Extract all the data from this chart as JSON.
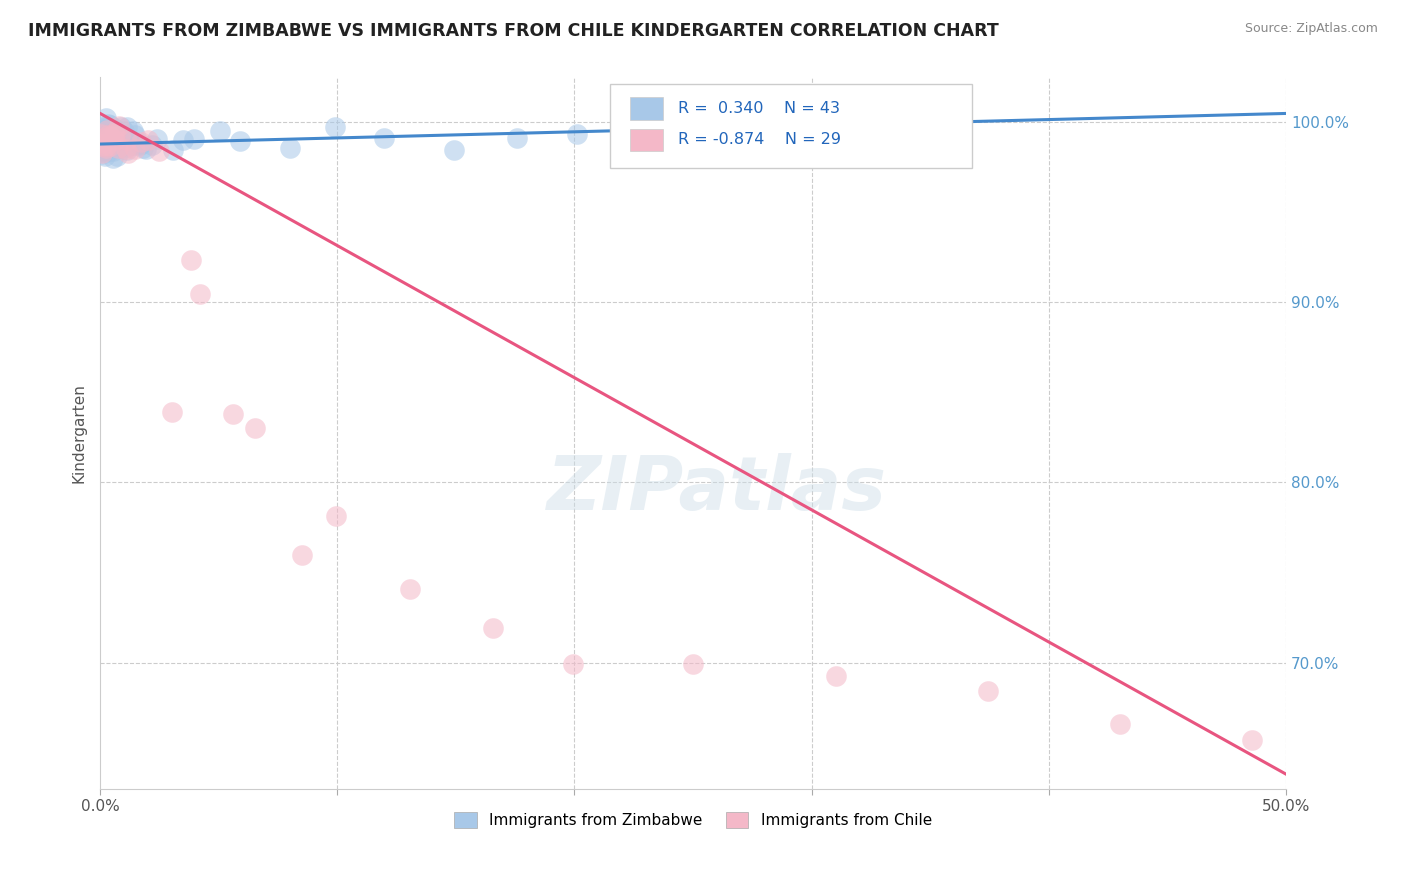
{
  "title": "IMMIGRANTS FROM ZIMBABWE VS IMMIGRANTS FROM CHILE KINDERGARTEN CORRELATION CHART",
  "source": "Source: ZipAtlas.com",
  "ylabel": "Kindergarten",
  "xlim": [
    0.0,
    0.5
  ],
  "ylim": [
    0.63,
    1.025
  ],
  "xticks": [
    0.0,
    0.1,
    0.2,
    0.3,
    0.4,
    0.5
  ],
  "xticklabels": [
    "0.0%",
    "",
    "",
    "",
    "",
    "50.0%"
  ],
  "yticks_right": [
    0.7,
    0.8,
    0.9,
    1.0
  ],
  "yticklabels_right": [
    "70.0%",
    "80.0%",
    "90.0%",
    "100.0%"
  ],
  "grid_yticks": [
    0.7,
    0.8,
    0.9,
    1.0
  ],
  "zimbabwe_color": "#a8c8e8",
  "chile_color": "#f4b8c8",
  "zimbabwe_line_color": "#4488cc",
  "chile_line_color": "#e85580",
  "R_zimbabwe": 0.34,
  "N_zimbabwe": 43,
  "R_chile": -0.874,
  "N_chile": 29,
  "legend_label_zimbabwe": "Immigrants from Zimbabwe",
  "legend_label_chile": "Immigrants from Chile",
  "watermark": "ZIPatlas",
  "background_color": "#ffffff",
  "title_color": "#222222",
  "title_fontsize": 12.5,
  "source_fontsize": 9,
  "zimbabwe_line_x": [
    0.0,
    0.5
  ],
  "zimbabwe_line_y": [
    0.988,
    1.005
  ],
  "chile_line_x": [
    0.0,
    0.5
  ],
  "chile_line_y": [
    1.005,
    0.638
  ],
  "zim_cluster_x": [
    0.001,
    0.002,
    0.002,
    0.003,
    0.003,
    0.004,
    0.004,
    0.005,
    0.005,
    0.006,
    0.006,
    0.007,
    0.007,
    0.008,
    0.008,
    0.009,
    0.01,
    0.01,
    0.011,
    0.012,
    0.013,
    0.014,
    0.015,
    0.016,
    0.018,
    0.02,
    0.022,
    0.025,
    0.03,
    0.035,
    0.04,
    0.05,
    0.06,
    0.08,
    0.1,
    0.12,
    0.15,
    0.175,
    0.2,
    0.23,
    0.27,
    0.31,
    0.35
  ],
  "zim_cluster_y": [
    0.99,
    0.995,
    0.985,
    0.992,
    0.998,
    0.99,
    0.985,
    0.995,
    0.98,
    0.992,
    0.988,
    0.995,
    0.982,
    0.99,
    0.985,
    0.993,
    0.988,
    0.996,
    0.99,
    0.985,
    0.992,
    0.988,
    0.995,
    0.99,
    0.988,
    0.986,
    0.99,
    0.988,
    0.985,
    0.99,
    0.988,
    0.992,
    0.99,
    0.985,
    0.996,
    0.992,
    0.988,
    0.99,
    0.992,
    0.99,
    0.988,
    0.99,
    0.992
  ],
  "chile_cluster_x": [
    0.001,
    0.002,
    0.003,
    0.004,
    0.005,
    0.006,
    0.007,
    0.008,
    0.01,
    0.012,
    0.015,
    0.018,
    0.02,
    0.025,
    0.03,
    0.038,
    0.042,
    0.055,
    0.065,
    0.085,
    0.1,
    0.13,
    0.165,
    0.2,
    0.25,
    0.31,
    0.375,
    0.43,
    0.485
  ],
  "chile_cluster_y": [
    0.99,
    0.985,
    0.992,
    0.988,
    0.995,
    0.99,
    0.985,
    0.992,
    0.988,
    0.992,
    0.985,
    0.99,
    0.988,
    0.985,
    0.84,
    0.92,
    0.905,
    0.84,
    0.83,
    0.76,
    0.78,
    0.74,
    0.72,
    0.7,
    0.7,
    0.69,
    0.68,
    0.666,
    0.656
  ]
}
